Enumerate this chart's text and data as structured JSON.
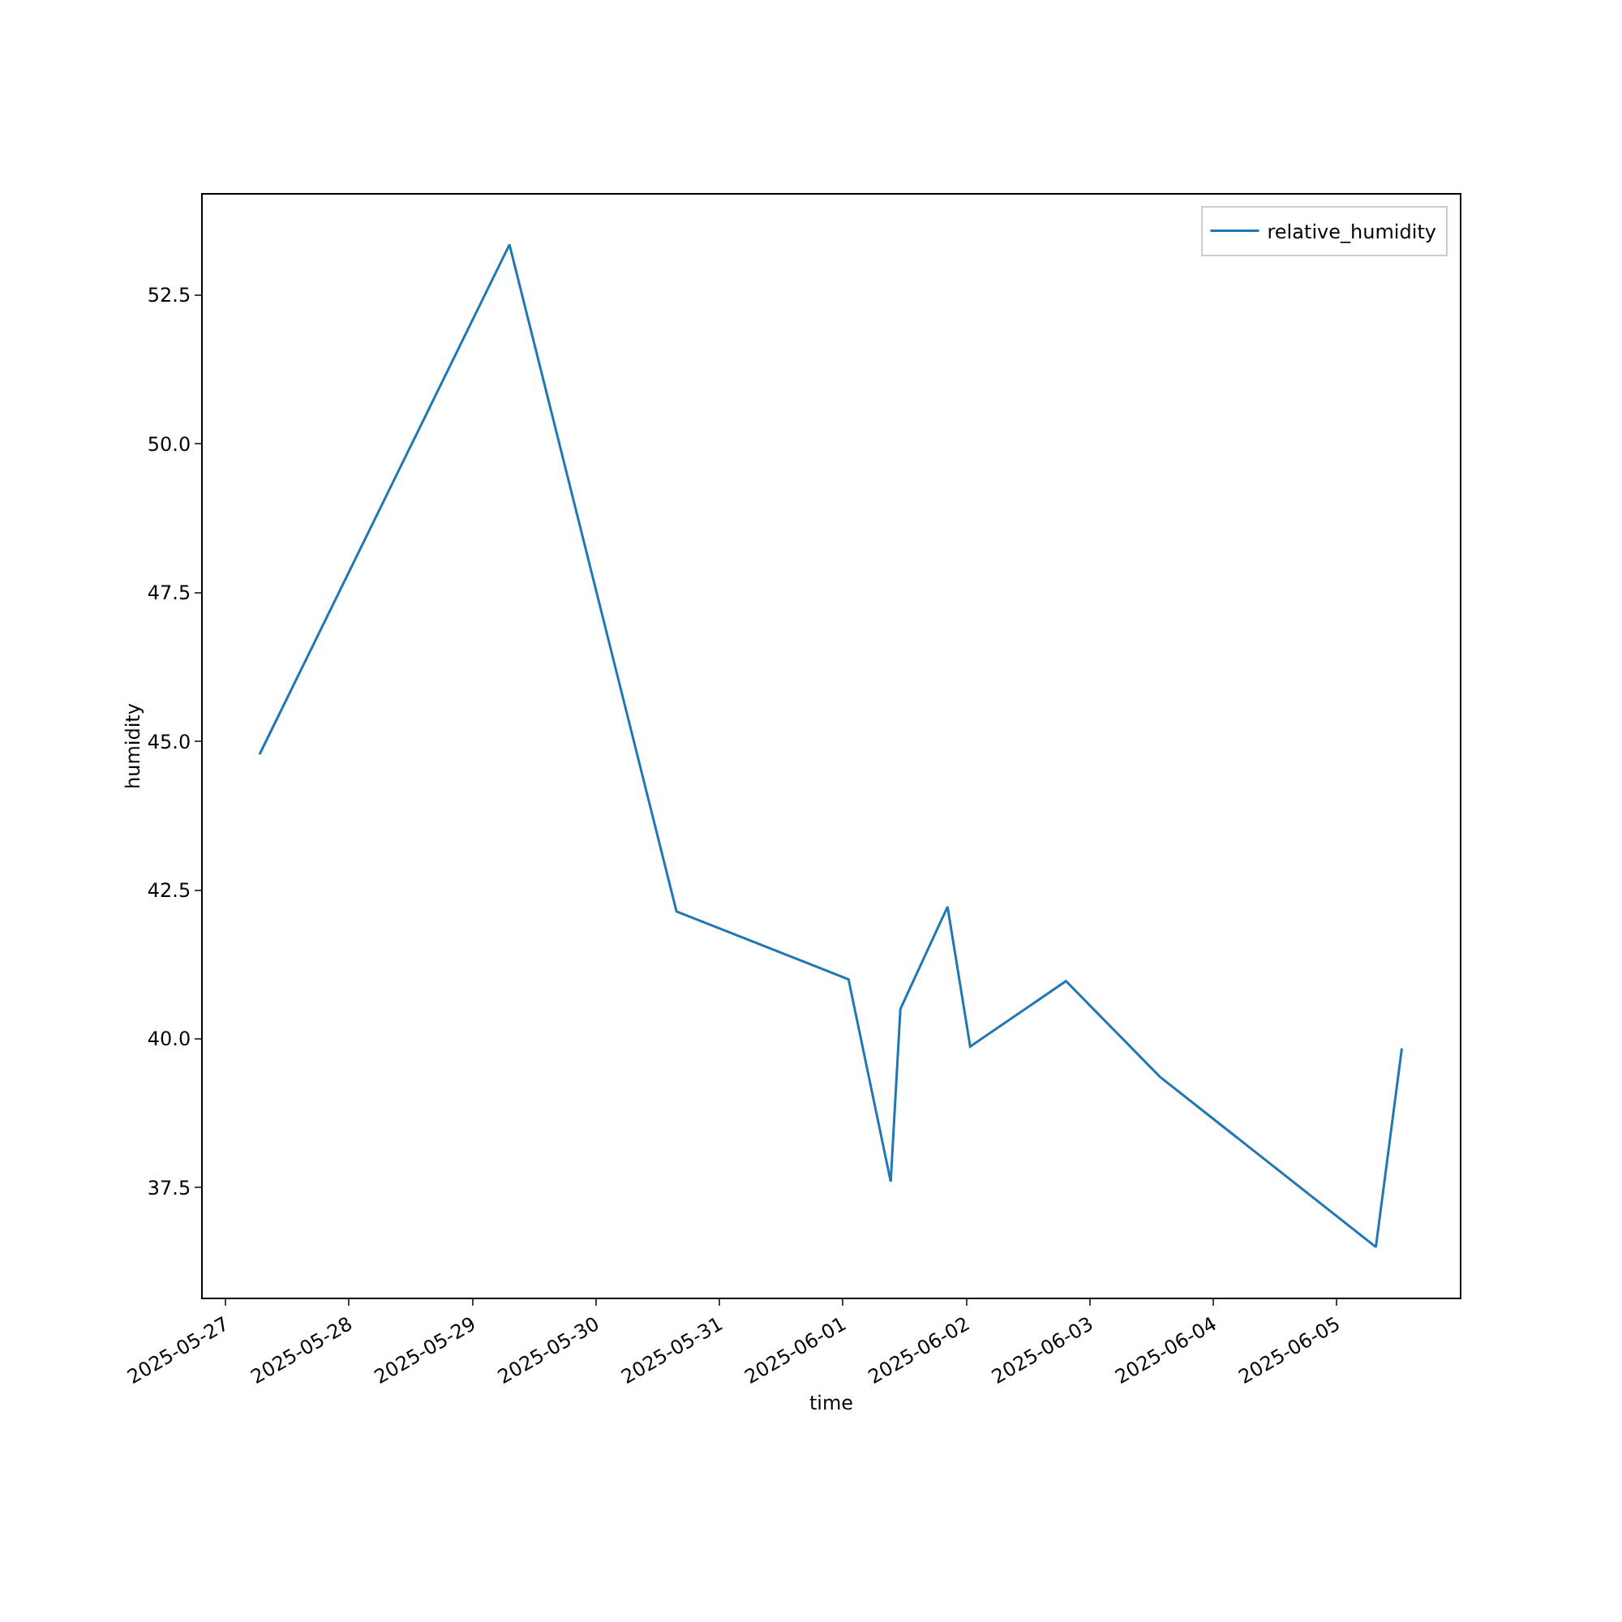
{
  "chart_data": {
    "type": "line",
    "xlabel": "time",
    "ylabel": "humidity",
    "legend": "top right",
    "grid": false,
    "line_style": "solid",
    "marker": "none",
    "x": [
      "2025-05-27T06:37",
      "2025-05-29T07:12",
      "2025-05-30T15:40",
      "2025-06-01T01:06",
      "2025-06-01T09:18",
      "2025-06-01T11:11",
      "2025-06-01T20:21",
      "2025-06-02T00:45",
      "2025-06-02T19:22",
      "2025-06-03T13:39",
      "2025-06-05T07:36",
      "2025-06-05T12:39"
    ],
    "series": [
      {
        "name": "relative_humidity",
        "color": "#1f77b4",
        "values": [
          44.78,
          53.35,
          42.14,
          41.0,
          37.6,
          40.5,
          42.22,
          39.87,
          40.97,
          39.36,
          36.5,
          39.84
        ]
      }
    ],
    "xlim": [
      "2025-05-26T19:35",
      "2025-06-05T23:55"
    ],
    "xticks": [
      "2025-05-27",
      "2025-05-28",
      "2025-05-29",
      "2025-05-30",
      "2025-05-31",
      "2025-06-01",
      "2025-06-02",
      "2025-06-03",
      "2025-06-04",
      "2025-06-05"
    ],
    "ylim": [
      35.65,
      54.19
    ],
    "yticks": [
      {
        "value": 37.5,
        "label": "37.5"
      },
      {
        "value": 40,
        "label": "40.0"
      },
      {
        "value": 42.5,
        "label": "42.5"
      },
      {
        "value": 45,
        "label": "45.0"
      },
      {
        "value": 47.5,
        "label": "47.5"
      },
      {
        "value": 50,
        "label": "50.0"
      },
      {
        "value": 52.5,
        "label": "52.5"
      }
    ]
  }
}
